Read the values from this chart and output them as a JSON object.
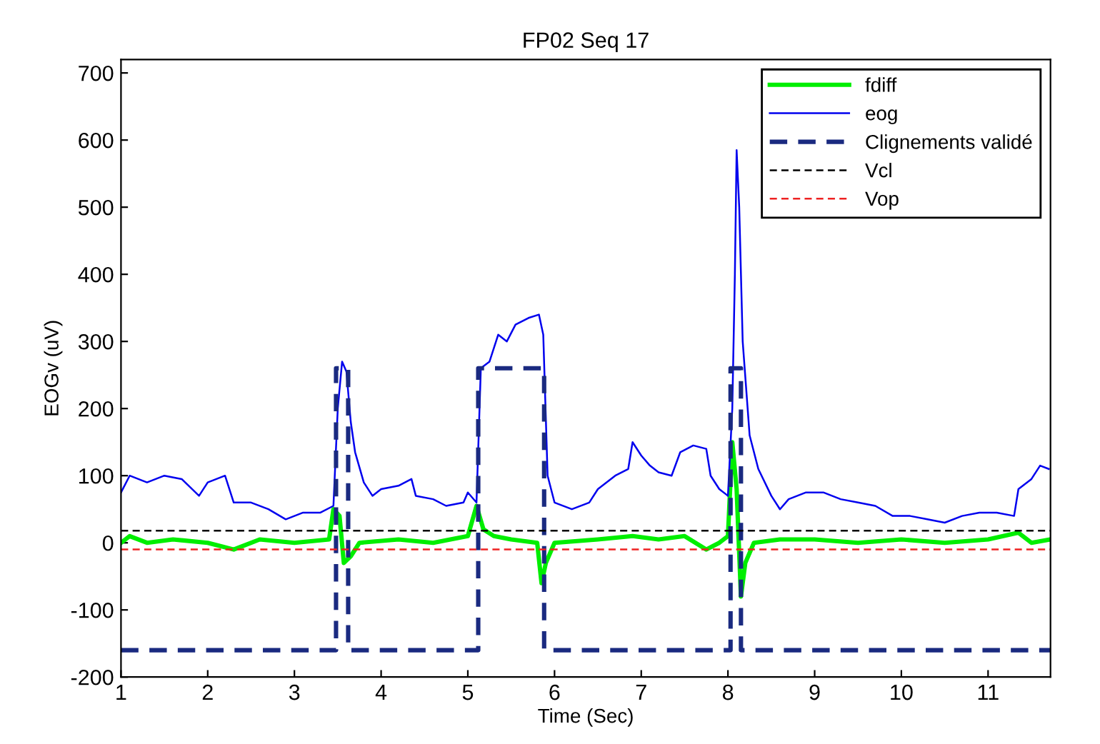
{
  "chart_data": {
    "type": "line",
    "title": "FP02 Seq 17",
    "xlabel": "Time (Sec)",
    "ylabel": "EOGv (uV)",
    "xlim": [
      1,
      11.72
    ],
    "ylim": [
      -200,
      720
    ],
    "xticks": [
      1,
      2,
      3,
      4,
      5,
      6,
      7,
      8,
      9,
      10,
      11
    ],
    "yticks": [
      -200,
      -100,
      0,
      100,
      200,
      300,
      400,
      500,
      600,
      700
    ],
    "grid": false,
    "legend": "top right",
    "marker": "none",
    "series": [
      {
        "name": "fdiff",
        "color": "#00ee00",
        "line_style": "solid",
        "x": [
          1,
          1.1,
          1.3,
          1.6,
          2.0,
          2.3,
          2.6,
          3.0,
          3.4,
          3.45,
          3.52,
          3.57,
          3.65,
          3.75,
          4.2,
          4.6,
          5.0,
          5.1,
          5.18,
          5.3,
          5.5,
          5.8,
          5.85,
          5.9,
          6.0,
          6.5,
          6.9,
          7.2,
          7.5,
          7.75,
          7.9,
          8.0,
          8.05,
          8.1,
          8.15,
          8.2,
          8.3,
          8.6,
          9.0,
          9.5,
          10.0,
          10.5,
          11.0,
          11.35,
          11.5,
          11.72
        ],
        "values": [
          0,
          10,
          0,
          5,
          0,
          -10,
          5,
          0,
          5,
          50,
          40,
          -30,
          -20,
          0,
          5,
          0,
          10,
          55,
          20,
          10,
          5,
          0,
          -60,
          -30,
          0,
          5,
          10,
          5,
          10,
          -10,
          0,
          10,
          150,
          80,
          -80,
          -30,
          0,
          5,
          5,
          0,
          5,
          0,
          5,
          15,
          0,
          5
        ]
      },
      {
        "name": "eog",
        "color": "#0000ee",
        "line_style": "solid",
        "x": [
          1,
          1.1,
          1.3,
          1.5,
          1.7,
          1.9,
          2.0,
          2.2,
          2.3,
          2.5,
          2.7,
          2.9,
          3.1,
          3.3,
          3.45,
          3.5,
          3.55,
          3.6,
          3.65,
          3.7,
          3.8,
          3.9,
          4.0,
          4.2,
          4.35,
          4.4,
          4.6,
          4.75,
          4.95,
          5.0,
          5.1,
          5.15,
          5.25,
          5.35,
          5.45,
          5.55,
          5.7,
          5.82,
          5.87,
          5.92,
          6.0,
          6.2,
          6.4,
          6.5,
          6.7,
          6.85,
          6.9,
          7.0,
          7.1,
          7.2,
          7.35,
          7.45,
          7.6,
          7.75,
          7.8,
          7.9,
          8.0,
          8.05,
          8.08,
          8.1,
          8.13,
          8.17,
          8.25,
          8.35,
          8.5,
          8.6,
          8.7,
          8.9,
          9.1,
          9.3,
          9.5,
          9.7,
          9.9,
          10.1,
          10.3,
          10.5,
          10.7,
          10.9,
          11.1,
          11.3,
          11.35,
          11.5,
          11.6,
          11.7
        ],
        "values": [
          75,
          100,
          90,
          100,
          95,
          70,
          90,
          100,
          60,
          60,
          50,
          35,
          45,
          45,
          55,
          200,
          270,
          255,
          180,
          135,
          90,
          70,
          80,
          85,
          95,
          70,
          65,
          55,
          60,
          75,
          60,
          260,
          270,
          310,
          300,
          325,
          335,
          340,
          310,
          100,
          60,
          50,
          60,
          80,
          100,
          110,
          150,
          130,
          115,
          105,
          100,
          135,
          145,
          140,
          100,
          80,
          70,
          200,
          400,
          585,
          500,
          300,
          160,
          110,
          70,
          50,
          65,
          75,
          75,
          65,
          60,
          55,
          40,
          40,
          35,
          30,
          40,
          45,
          45,
          40,
          80,
          95,
          115,
          110
        ]
      },
      {
        "name": "Clignements validé",
        "color": "#1a2a80",
        "line_style": "dashed",
        "x": [
          1,
          3.48,
          3.48,
          3.62,
          3.62,
          5.12,
          5.12,
          5.88,
          5.88,
          8.03,
          8.03,
          8.15,
          8.15,
          11.72
        ],
        "values": [
          -160,
          -160,
          260,
          260,
          -160,
          -160,
          260,
          260,
          -160,
          -160,
          260,
          260,
          -160,
          -160
        ]
      },
      {
        "name": "Vcl",
        "color": "#000000",
        "line_style": "dashed",
        "x": [
          1,
          11.72
        ],
        "values": [
          18,
          18
        ]
      },
      {
        "name": "Vop",
        "color": "#ee2222",
        "line_style": "dashed",
        "x": [
          1,
          11.72
        ],
        "values": [
          -10,
          -10
        ]
      }
    ]
  }
}
